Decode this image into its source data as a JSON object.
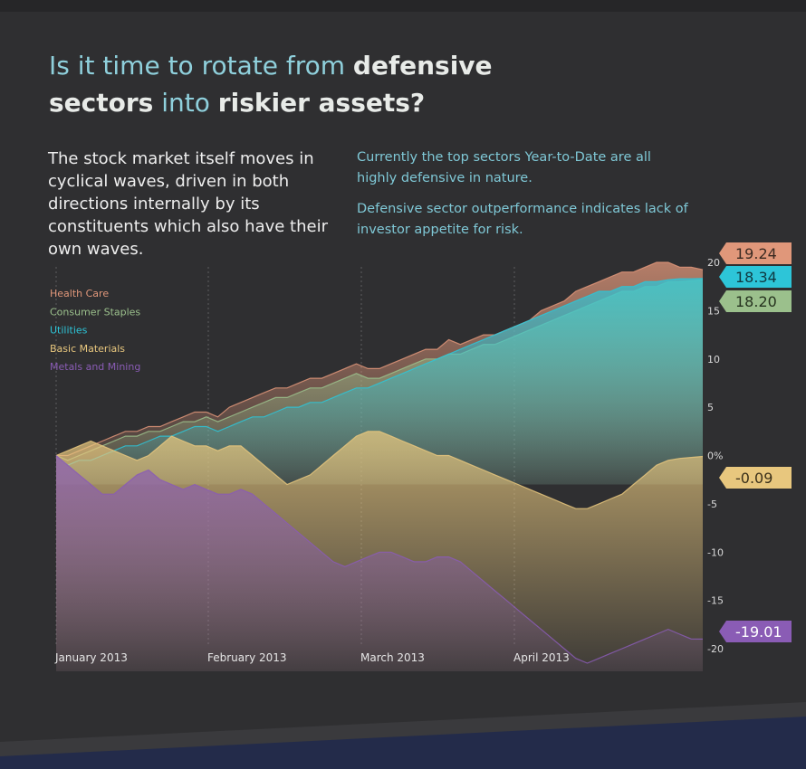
{
  "header": {
    "title_parts": [
      {
        "text": "Is it time to rotate from ",
        "bold": false
      },
      {
        "text": "defensive",
        "bold": true
      },
      {
        "text": "sectors",
        "bold": true,
        "newline": true
      },
      {
        "text": " into ",
        "bold": false
      },
      {
        "text": "riskier assets?",
        "bold": true
      }
    ]
  },
  "body": {
    "intro": "The stock market itself moves in cyclical waves, driven in both directions internally by its constituents which also have their own waves.",
    "note1": "Currently the top sectors Year-to-Date are all highly defensive in nature.",
    "note2": "Defensive sector outperformance indicates lack of investor appetite for risk."
  },
  "colors": {
    "background": "#2f2f31",
    "footer": "#232b4a",
    "Health Care": "#e0977a",
    "Consumer Staples": "#9bc08c",
    "Utilities": "#2dc5d8",
    "Basic Materials": "#e8c77e",
    "Metals and Mining": "#8a5cb5"
  },
  "chart_data": {
    "type": "area",
    "x_labels": [
      "January 2013",
      "February 2013",
      "March 2013",
      "April 2013"
    ],
    "y_ticks": [
      "20",
      "15",
      "10",
      "5",
      "0%",
      "-5",
      "-10",
      "-15",
      "-20"
    ],
    "ylim": [
      -20,
      20
    ],
    "legend_position": "top-left",
    "series": [
      {
        "name": "Health Care",
        "color": "#e0977a",
        "end_label": "19.24",
        "values": [
          0,
          0,
          0.5,
          1,
          1.5,
          2,
          2.5,
          2.5,
          3,
          3,
          3.5,
          4,
          4.5,
          4.5,
          4,
          5,
          5.5,
          6,
          6.5,
          7,
          7,
          7.5,
          8,
          8,
          8.5,
          9,
          9.5,
          9,
          9,
          9.5,
          10,
          10.5,
          11,
          11,
          12,
          11.5,
          12,
          12.5,
          12.5,
          13,
          13.5,
          14,
          15,
          15.5,
          16,
          17,
          17.5,
          18,
          18.5,
          19,
          19,
          19.5,
          20,
          20,
          19.5,
          19.5,
          19.24
        ]
      },
      {
        "name": "Consumer Staples",
        "color": "#9bc08c",
        "end_label": "18.20",
        "values": [
          0,
          -0.5,
          0,
          0.5,
          1,
          1.5,
          2,
          2,
          2.5,
          2.5,
          3,
          3.5,
          3.5,
          4,
          3.5,
          4,
          4.5,
          5,
          5.5,
          6,
          6,
          6.5,
          7,
          7,
          7.5,
          8,
          8.5,
          8,
          8,
          8.5,
          9,
          9.5,
          10,
          10,
          10.5,
          10.5,
          11,
          11.5,
          11.5,
          12,
          12.5,
          13,
          13.5,
          14,
          14.5,
          15,
          15.5,
          16,
          16.5,
          17,
          17,
          17.5,
          17.5,
          18,
          18,
          18.1,
          18.2
        ]
      },
      {
        "name": "Utilities",
        "color": "#2dc5d8",
        "end_label": "18.34",
        "values": [
          0,
          -1,
          -0.5,
          -0.5,
          0,
          0.5,
          1,
          1,
          1.5,
          2,
          2,
          2.5,
          3,
          3,
          2.5,
          3,
          3.5,
          4,
          4,
          4.5,
          5,
          5,
          5.5,
          5.5,
          6,
          6.5,
          7,
          7,
          7.5,
          8,
          8.5,
          9,
          9.5,
          10,
          10.5,
          11,
          11.5,
          12,
          12.5,
          13,
          13.5,
          14,
          14.5,
          15,
          15.5,
          16,
          16.5,
          17,
          17,
          17.5,
          17.5,
          18,
          18,
          18.2,
          18.3,
          18.3,
          18.34
        ]
      },
      {
        "name": "Basic Materials",
        "color": "#e8c77e",
        "end_label": "-0.09",
        "values": [
          0,
          0.5,
          1,
          1.5,
          1,
          0.5,
          0,
          -0.5,
          0,
          1,
          2,
          1.5,
          1,
          1,
          0.5,
          1,
          1,
          0,
          -1,
          -2,
          -3,
          -2.5,
          -2,
          -1,
          0,
          1,
          2,
          2.5,
          2.5,
          2,
          1.5,
          1,
          0.5,
          0,
          0,
          -0.5,
          -1,
          -1.5,
          -2,
          -2.5,
          -3,
          -3.5,
          -4,
          -4.5,
          -5,
          -5.5,
          -5.5,
          -5,
          -4.5,
          -4,
          -3,
          -2,
          -1,
          -0.5,
          -0.3,
          -0.2,
          -0.09
        ]
      },
      {
        "name": "Metals and Mining",
        "color": "#8a5cb5",
        "end_label": "-19.01",
        "values": [
          0,
          -1,
          -2,
          -3,
          -4,
          -4,
          -3,
          -2,
          -1.5,
          -2.5,
          -3,
          -3.5,
          -3,
          -3.5,
          -4,
          -4,
          -3.5,
          -4,
          -5,
          -6,
          -7,
          -8,
          -9,
          -10,
          -11,
          -11.5,
          -11,
          -10.5,
          -10,
          -10,
          -10.5,
          -11,
          -11,
          -10.5,
          -10.5,
          -11,
          -12,
          -13,
          -14,
          -15,
          -16,
          -17,
          -18,
          -19,
          -20,
          -21,
          -21.5,
          -21,
          -20.5,
          -20,
          -19.5,
          -19,
          -18.5,
          -18,
          -18.5,
          -19,
          -19.01
        ]
      }
    ]
  }
}
